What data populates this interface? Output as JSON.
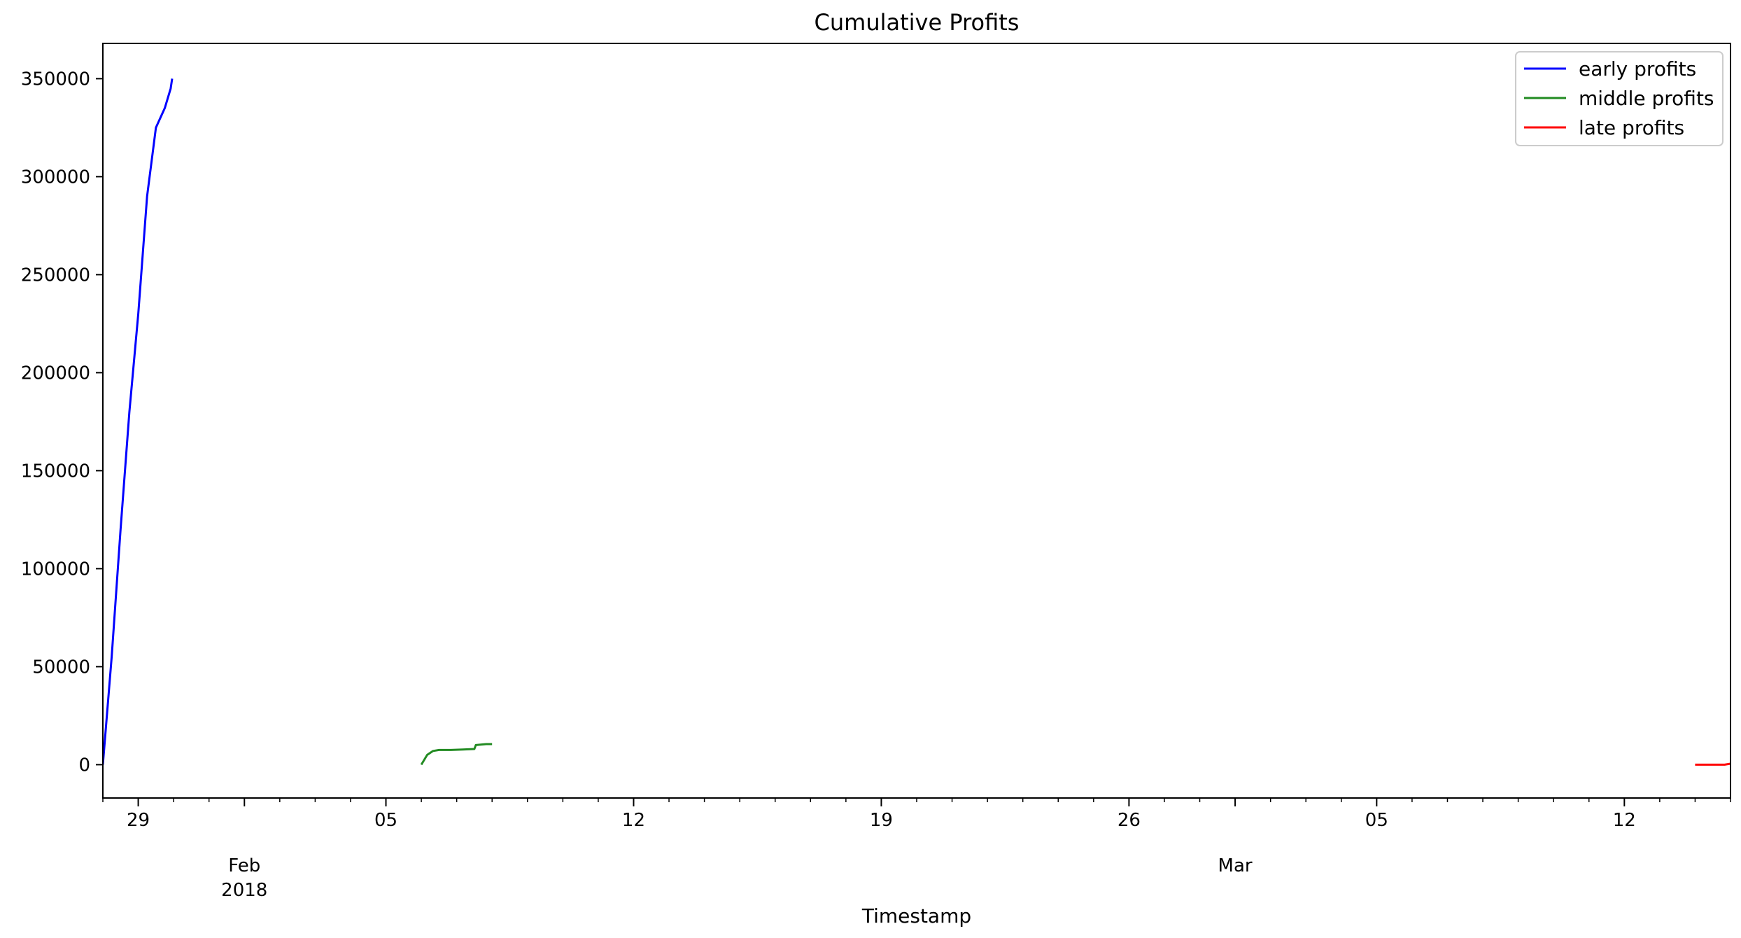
{
  "chart_data": {
    "type": "line",
    "title": "Cumulative Profits",
    "xlabel": "Timestamp",
    "ylabel": "",
    "xlim": [
      "2018-01-28",
      "2018-03-15"
    ],
    "ylim": [
      -17000,
      368000
    ],
    "yticks": [
      0,
      50000,
      100000,
      150000,
      200000,
      250000,
      300000,
      350000
    ],
    "ytick_labels": [
      "0",
      "50000",
      "100000",
      "150000",
      "200000",
      "250000",
      "300000",
      "350000"
    ],
    "xticks": [
      "2018-01-29",
      "2018-02-05",
      "2018-02-12",
      "2018-02-19",
      "2018-02-26",
      "2018-03-05",
      "2018-03-12"
    ],
    "xtick_labels": [
      "29",
      "05",
      "12",
      "19",
      "26",
      "05",
      "12"
    ],
    "month_labels": [
      {
        "date": "2018-02-01",
        "text": "Feb",
        "sub": "2018"
      },
      {
        "date": "2018-03-01",
        "text": "Mar",
        "sub": ""
      }
    ],
    "grid": false,
    "legend_position": "top-right",
    "series": [
      {
        "name": "early profits",
        "color": "#0000ff",
        "x": [
          "2018-01-28T00:00",
          "2018-01-28T06:00",
          "2018-01-28T12:00",
          "2018-01-28T18:00",
          "2018-01-29T00:00",
          "2018-01-29T06:00",
          "2018-01-29T12:00",
          "2018-01-29T18:00",
          "2018-01-29T20:00",
          "2018-01-29T22:00",
          "2018-01-29T23:00"
        ],
        "y": [
          0,
          55000,
          120000,
          180000,
          230000,
          290000,
          325000,
          335000,
          340000,
          345000,
          350000
        ]
      },
      {
        "name": "middle profits",
        "color": "#228b22",
        "x": [
          "2018-02-06T00:00",
          "2018-02-06T04:00",
          "2018-02-06T08:00",
          "2018-02-06T12:00",
          "2018-02-06T20:00",
          "2018-02-07T04:00",
          "2018-02-07T12:00",
          "2018-02-07T13:00",
          "2018-02-07T20:00",
          "2018-02-08T00:00"
        ],
        "y": [
          0,
          5000,
          7000,
          7500,
          7500,
          7700,
          8000,
          10000,
          10500,
          10500
        ]
      },
      {
        "name": "late profits",
        "color": "#ff0000",
        "x": [
          "2018-03-14T00:00",
          "2018-03-14T12:00",
          "2018-03-14T20:00",
          "2018-03-15T00:00"
        ],
        "y": [
          0,
          0,
          0,
          500
        ]
      }
    ]
  }
}
